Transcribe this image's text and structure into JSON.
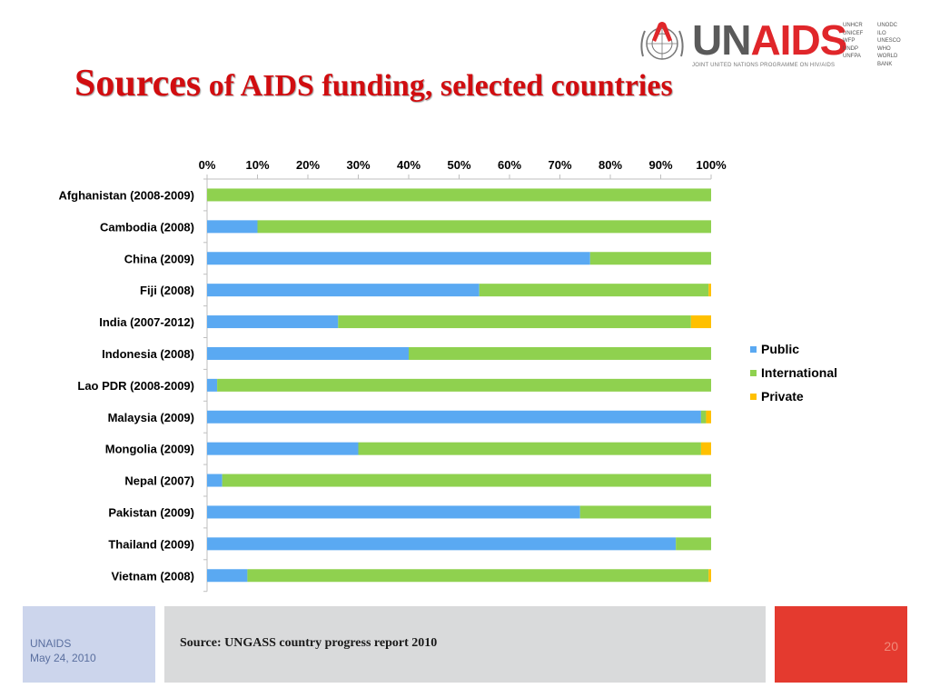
{
  "slide": {
    "title_big": "Sources",
    "title_rest": " of AIDS funding, selected countries",
    "logo": {
      "un": "UN",
      "aids": "AIDS",
      "tagline": "JOINT UNITED NATIONS PROGRAMME ON HIV/AIDS",
      "agencies": [
        "UNHCR",
        "UNODC",
        "UNICEF",
        "ILO",
        "WFP",
        "UNESCO",
        "UNDP",
        "WHO",
        "UNFPA",
        "WORLD BANK"
      ]
    },
    "footer": {
      "org": "UNAIDS",
      "date": "May 24, 2010",
      "source": "Source:  UNGASS country progress report 2010",
      "page_number": "20"
    }
  },
  "colors": {
    "title": "#d10d10",
    "public": "#5aa9f2",
    "international": "#8fd14f",
    "private": "#ffc000",
    "footer_left": "#ccd5ec",
    "footer_mid": "#d9dadb",
    "footer_right": "#e43a2f"
  },
  "chart_data": {
    "type": "bar",
    "orientation": "horizontal",
    "stacked": "percent",
    "categories": [
      "Afghanistan (2008-2009)",
      "Cambodia (2008)",
      "China (2009)",
      "Fiji (2008)",
      "India (2007-2012)",
      "Indonesia (2008)",
      "Lao PDR (2008-2009)",
      "Malaysia (2009)",
      "Mongolia (2009)",
      "Nepal (2007)",
      "Pakistan (2009)",
      "Thailand (2009)",
      "Vietnam (2008)"
    ],
    "series": [
      {
        "name": "Public",
        "values": [
          0,
          10,
          76,
          54,
          26,
          40,
          2,
          98,
          30,
          3,
          74,
          93,
          8
        ]
      },
      {
        "name": "International",
        "values": [
          100,
          90,
          24,
          45.5,
          70,
          60,
          98,
          1,
          68,
          97,
          26,
          7,
          91.5
        ]
      },
      {
        "name": "Private",
        "values": [
          0,
          0,
          0,
          0.5,
          4,
          0,
          0,
          1,
          2,
          0,
          0,
          0,
          0.5
        ]
      }
    ],
    "xlim": [
      0,
      100
    ],
    "x_ticks": [
      "0%",
      "10%",
      "20%",
      "30%",
      "40%",
      "50%",
      "60%",
      "70%",
      "80%",
      "90%",
      "100%"
    ],
    "x_axis_position": "top",
    "grid": false,
    "legend": "right"
  }
}
